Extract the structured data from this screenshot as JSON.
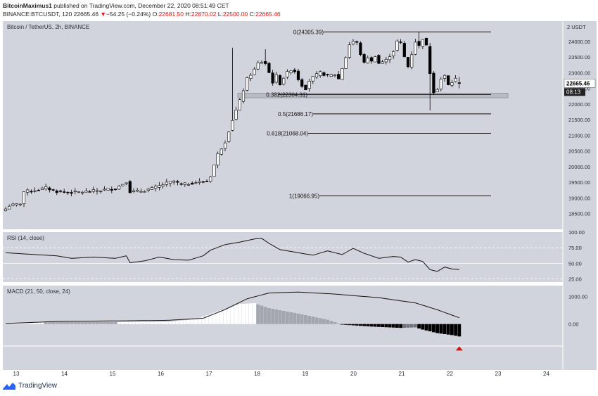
{
  "header": {
    "author": "BitcoinMaximus1",
    "published_text": "published on TradingView.com, December 22, 2020 08:51:49 CET",
    "symbol": "BINANCE:BTCUSDT, 120",
    "last": "22665.46",
    "change": "−54.25 (−0.24%)",
    "o_label": "O:",
    "o_value": "22681.50",
    "h_label": "H:",
    "h_value": "22870.02",
    "l_label": "L:",
    "l_value": "22500.00",
    "c_label": "C:",
    "c_value": "22665.46"
  },
  "footer": {
    "brand": "TradingView"
  },
  "colors": {
    "panel_bg": "#d1d4dc",
    "candle_up": "#ffffff",
    "candle_down": "#000000",
    "accent_red": "#e01010",
    "text_dark": "#2a2e39"
  },
  "chart_data": {
    "type": "candlestick",
    "title": "Bitcoin / TetherUS, 2h, BINANCE",
    "price_axis_unit": "2 USDT",
    "last_price_label": "22665.46",
    "countdown_label": "08:13",
    "y_ticks": [
      "24000.00",
      "23500.00",
      "23000.00",
      "22500.00",
      "22000.00",
      "21500.00",
      "21000.00",
      "20500.00",
      "20000.00",
      "19500.00",
      "19000.00",
      "18500.00"
    ],
    "ylim": [
      18000,
      24650
    ],
    "x_ticks": [
      "13",
      "14",
      "15",
      "16",
      "17",
      "18",
      "19",
      "20",
      "21",
      "22",
      "23",
      "24"
    ],
    "fib_levels": [
      {
        "label": "0(24305.39)",
        "value": 24305.39
      },
      {
        "label": "0.382(22304.31)",
        "value": 22304.31
      },
      {
        "label": "0.5(21686.17)",
        "value": 21686.17
      },
      {
        "label": "0.618(21068.04)",
        "value": 21068.04
      },
      {
        "label": "1(19066.95)",
        "value": 19066.95
      }
    ],
    "support_zone": [
      22200,
      22350
    ],
    "anchors": [
      [
        0,
        18650
      ],
      [
        1,
        18760
      ],
      [
        3,
        18790
      ],
      [
        4,
        18830
      ],
      [
        5,
        19200
      ],
      [
        8,
        19250
      ],
      [
        11,
        19320
      ],
      [
        14,
        19210
      ],
      [
        18,
        19180
      ],
      [
        22,
        19200
      ],
      [
        26,
        19250
      ],
      [
        30,
        19300
      ],
      [
        33,
        19530
      ],
      [
        34,
        19200
      ],
      [
        37,
        19220
      ],
      [
        40,
        19300
      ],
      [
        44,
        19470
      ],
      [
        46,
        19530
      ],
      [
        48,
        19420
      ],
      [
        52,
        19500
      ],
      [
        55,
        19530
      ],
      [
        56,
        19700
      ],
      [
        58,
        20400
      ],
      [
        60,
        20800
      ],
      [
        62,
        21500
      ],
      [
        64,
        22100
      ],
      [
        66,
        22800
      ],
      [
        68,
        23100
      ],
      [
        69,
        23300
      ],
      [
        70,
        23350
      ],
      [
        71,
        23300
      ],
      [
        72,
        23000
      ],
      [
        73,
        22700
      ],
      [
        74,
        22900
      ],
      [
        75,
        22650
      ],
      [
        76,
        22850
      ],
      [
        77,
        23000
      ],
      [
        78,
        23100
      ],
      [
        79,
        23050
      ],
      [
        80,
        22800
      ],
      [
        81,
        22600
      ],
      [
        82,
        22500
      ],
      [
        83,
        22750
      ],
      [
        84,
        22850
      ],
      [
        86,
        23000
      ],
      [
        88,
        22900
      ],
      [
        90,
        22950
      ],
      [
        91,
        22800
      ],
      [
        92,
        23150
      ],
      [
        93,
        23500
      ],
      [
        94,
        23900
      ],
      [
        95,
        24000
      ],
      [
        96,
        23950
      ],
      [
        97,
        23600
      ],
      [
        98,
        23300
      ],
      [
        99,
        23500
      ],
      [
        100,
        23350
      ],
      [
        101,
        23550
      ],
      [
        102,
        23300
      ],
      [
        104,
        23400
      ],
      [
        106,
        23700
      ],
      [
        107,
        24000
      ],
      [
        108,
        23950
      ],
      [
        109,
        23500
      ],
      [
        110,
        23200
      ],
      [
        111,
        23600
      ],
      [
        112,
        24000
      ],
      [
        113,
        23850
      ],
      [
        114,
        24100
      ],
      [
        115,
        23850
      ],
      [
        116,
        23000
      ],
      [
        117,
        22400
      ],
      [
        118,
        22500
      ],
      [
        119,
        22800
      ],
      [
        120,
        22900
      ],
      [
        121,
        22600
      ],
      [
        122,
        22700
      ],
      [
        123,
        22800
      ],
      [
        124,
        22665
      ]
    ],
    "rsi": {
      "label": "RSI (14, close)",
      "ticks": [
        "100.00",
        "75.00",
        "50.00",
        "25.00"
      ],
      "ylim": [
        20,
        100
      ],
      "anchors": [
        [
          0,
          67
        ],
        [
          8,
          64
        ],
        [
          14,
          62
        ],
        [
          18,
          58
        ],
        [
          24,
          60
        ],
        [
          30,
          58
        ],
        [
          33,
          62
        ],
        [
          34,
          51
        ],
        [
          38,
          54
        ],
        [
          42,
          60
        ],
        [
          46,
          56
        ],
        [
          50,
          55
        ],
        [
          54,
          62
        ],
        [
          56,
          71
        ],
        [
          60,
          80
        ],
        [
          64,
          84
        ],
        [
          68,
          89
        ],
        [
          70,
          90
        ],
        [
          72,
          82
        ],
        [
          75,
          72
        ],
        [
          80,
          67
        ],
        [
          84,
          63
        ],
        [
          88,
          70
        ],
        [
          92,
          64
        ],
        [
          95,
          74
        ],
        [
          98,
          66
        ],
        [
          102,
          58
        ],
        [
          106,
          61
        ],
        [
          108,
          60
        ],
        [
          110,
          52
        ],
        [
          112,
          56
        ],
        [
          114,
          53
        ],
        [
          116,
          40
        ],
        [
          118,
          37
        ],
        [
          120,
          44
        ],
        [
          122,
          41
        ],
        [
          124,
          40
        ]
      ]
    },
    "macd": {
      "label": "MACD (21, 50, close, 24)",
      "ticks": [
        "1000.00",
        "0.00"
      ],
      "ylim": [
        -800,
        1400
      ],
      "line_anchors": [
        [
          0,
          20
        ],
        [
          14,
          95
        ],
        [
          30,
          115
        ],
        [
          44,
          135
        ],
        [
          54,
          210
        ],
        [
          60,
          530
        ],
        [
          66,
          920
        ],
        [
          72,
          1130
        ],
        [
          80,
          1165
        ],
        [
          90,
          1090
        ],
        [
          102,
          960
        ],
        [
          112,
          770
        ],
        [
          118,
          520
        ],
        [
          124,
          230
        ]
      ],
      "hist_anchors": [
        [
          0,
          10
        ],
        [
          10,
          80
        ],
        [
          30,
          70
        ],
        [
          44,
          70
        ],
        [
          52,
          180
        ],
        [
          58,
          460
        ],
        [
          64,
          730
        ],
        [
          68,
          760
        ],
        [
          72,
          580
        ],
        [
          80,
          380
        ],
        [
          88,
          160
        ],
        [
          92,
          -20
        ],
        [
          100,
          -90
        ],
        [
          108,
          -140
        ],
        [
          112,
          -120
        ],
        [
          114,
          -200
        ],
        [
          118,
          -330
        ],
        [
          122,
          -400
        ],
        [
          124,
          -450
        ]
      ]
    }
  }
}
